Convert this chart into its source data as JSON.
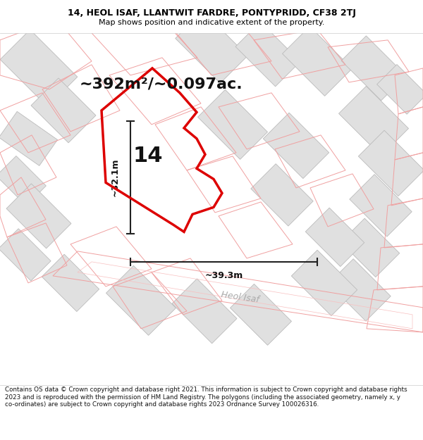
{
  "title_line1": "14, HEOL ISAF, LLANTWIT FARDRE, PONTYPRIDD, CF38 2TJ",
  "title_line2": "Map shows position and indicative extent of the property.",
  "area_text": "~392m²/~0.097ac.",
  "dim_vertical": "~32.1m",
  "dim_horizontal": "~39.3m",
  "property_number": "14",
  "street_label": "Heol Isaf",
  "footer_text": "Contains OS data © Crown copyright and database right 2021. This information is subject to Crown copyright and database rights 2023 and is reproduced with the permission of HM Land Registry. The polygons (including the associated geometry, namely x, y co-ordinates) are subject to Crown copyright and database rights 2023 Ordnance Survey 100026316.",
  "map_bg": "#ffffff",
  "building_color": "#e0e0e0",
  "building_edge": "#bbbbbb",
  "outline_color": "#f0a0a0",
  "property_outline_color": "#dd0000",
  "dim_line_color": "#222222",
  "footer_bg": "#ffffff",
  "title_bg": "#ffffff",
  "title_fontsize": 9,
  "subtitle_fontsize": 8,
  "area_fontsize": 16,
  "number_fontsize": 22,
  "dim_fontsize": 9,
  "street_fontsize": 9
}
